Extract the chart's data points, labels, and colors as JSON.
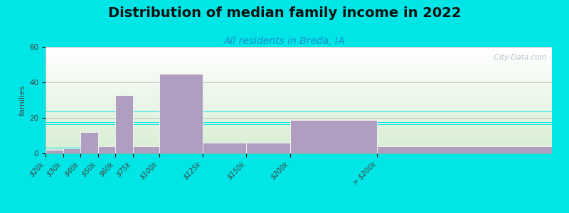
{
  "title": "Distribution of median family income in 2022",
  "subtitle": "All residents in Breda, IA",
  "ylabel": "families",
  "categories": [
    "$20k",
    "$30k",
    "$40k",
    "$50k",
    "$60k",
    "$75k",
    "$100k",
    "$125k",
    "$150k",
    "$200k",
    "> $200k"
  ],
  "values": [
    2,
    3,
    12,
    4,
    33,
    4,
    45,
    6,
    6,
    19,
    4
  ],
  "bin_edges": [
    0,
    10,
    20,
    30,
    40,
    50,
    65,
    90,
    115,
    140,
    190,
    290
  ],
  "bar_color": "#b09ec0",
  "bar_edgecolor": "#ffffff",
  "background_color": "#00e5e5",
  "ylim": [
    0,
    60
  ],
  "yticks": [
    0,
    20,
    40,
    60
  ],
  "title_fontsize": 14,
  "subtitle_fontsize": 10,
  "ylabel_fontsize": 8,
  "tick_fontsize": 7,
  "watermark": "  City-Data.com"
}
